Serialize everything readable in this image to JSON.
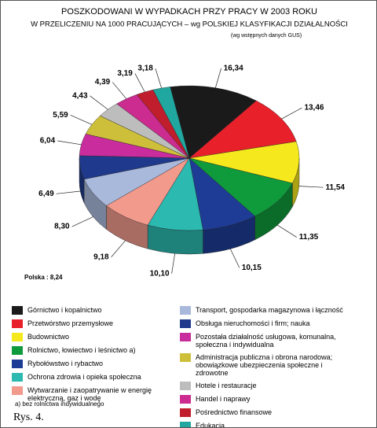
{
  "chart_data": {
    "type": "pie3d",
    "title": "POSZKODOWANI  W  WYPADKACH  PRZY PRACY  W 2003 ROKU",
    "title_line2": "W PRZELICZENIU NA 1000 PRACUJĄCYCH – wg POLSKIEJ KLASYFIKACJI DZIAŁALNOŚCI",
    "subtitle": "(wg wstępnych danych GUS)",
    "annotation": "Polska : 8,24",
    "footnote": "a) bez rolnictwa indywidualnego",
    "figure_label": "Rys. 4.",
    "categories": [
      "Górnictwo i kopalnictwo",
      "Przetwórstwo przemysłowe",
      "Budownictwo",
      "Rolnictwo, łowiectwo i leśnictwo a)",
      "Rybołówstwo i rybactwo",
      "Ochrona zdrowia i opieka społeczna",
      "Wytwarzanie i zaopatrywanie w energię elektryczną, gaz i wodę",
      "Transport, gospodarka magazynowa i łączność",
      "Obsługa nieruchomości i firm; nauka",
      "Pozostała działalność usługowa, komunalna, społeczna i indywidualna",
      "Administracja publiczna i obrona narodowa; obowiązkowe ubezpieczenia społeczne i zdrowotne",
      "Hotele i restauracje",
      "Handel i naprawy",
      "Pośrednictwo finansowe",
      "Edukacja"
    ],
    "values": [
      16.34,
      13.46,
      11.54,
      11.35,
      10.15,
      10.1,
      9.18,
      8.3,
      6.49,
      6.04,
      5.59,
      4.43,
      4.39,
      3.19,
      3.18
    ],
    "value_labels": [
      "16,34",
      "13,46",
      "11,54",
      "11,35",
      "10,15",
      "10,10",
      "9,18",
      "8,30",
      "6,49",
      "6,04",
      "5,59",
      "4,43",
      "4,39",
      "3,19",
      "3,18"
    ],
    "colors": [
      "#1a1a1a",
      "#e8202a",
      "#f5e81c",
      "#0f9a3c",
      "#1e3c96",
      "#2bb9b0",
      "#f29a8c",
      "#a9b9dc",
      "#1f3a8c",
      "#c92c9c",
      "#cdbf3a",
      "#bdbdbd",
      "#cc2c90",
      "#c01e2c",
      "#20a8a0"
    ]
  }
}
